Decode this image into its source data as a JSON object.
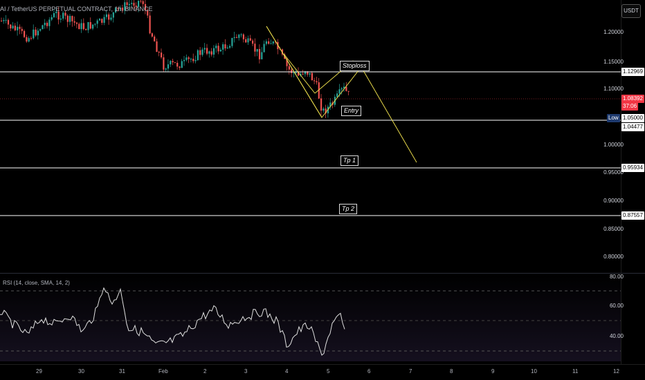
{
  "header": {
    "symbol_title": "AI / TetherUS PERPETUAL CONTRACT, 1h, BINANCE",
    "currency_button": "USDT"
  },
  "price_axis": {
    "ticks": [
      "1.20000",
      "1.15000",
      "1.10000",
      "1.00000",
      "0.95000",
      "0.90000",
      "0.85000",
      "0.80000"
    ],
    "labels": {
      "stoploss_price": "1.12969",
      "current_price": "1.08392",
      "countdown": "37:06",
      "low_tag": "Low",
      "low_price": "1.05000",
      "entry_price": "1.04477",
      "tp1_price": "0.95934",
      "tp2_price": "0.87557"
    }
  },
  "annotations": {
    "stoploss": "Stoploss",
    "entry": "Entry",
    "tp1": "Tp 1",
    "tp2": "Tp 2"
  },
  "rsi": {
    "title": "RSI (14, close, SMA, 14, 2)",
    "ticks": [
      "80.00",
      "60.00",
      "40.00"
    ]
  },
  "time_axis": {
    "labels": [
      "29",
      "30",
      "31",
      "Feb",
      "2",
      "3",
      "4",
      "5",
      "6",
      "7",
      "8",
      "9",
      "10",
      "11",
      "12"
    ]
  },
  "colors": {
    "up": "#26a69a",
    "down": "#ef5350",
    "pattern": "#e6d84a",
    "current_price_bg": "#f23645",
    "low_bg": "#1e3a6e"
  }
}
